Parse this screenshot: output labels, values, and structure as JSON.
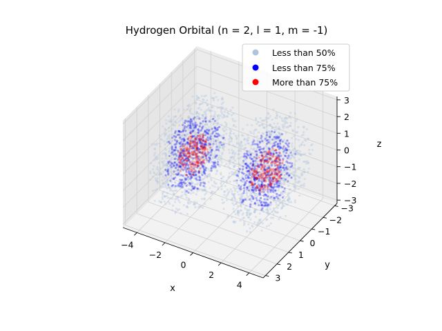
{
  "chart_data": {
    "type": "scatter",
    "projection": "3d",
    "title": "Hydrogen Orbital (n = 2, l = 1, m = -1)",
    "xlabel": "x",
    "ylabel": "y",
    "zlabel": "z",
    "xlim": [
      -5,
      5
    ],
    "ylim": [
      -3.2,
      3.2
    ],
    "zlim": [
      -3.2,
      3.2
    ],
    "x_ticks": [
      "−4",
      "−2",
      "0",
      "2",
      "4"
    ],
    "x_tick_values": [
      -4,
      -2,
      0,
      2,
      4
    ],
    "y_ticks": [
      "−3",
      "−2",
      "−1",
      "0",
      "1",
      "2",
      "3"
    ],
    "y_tick_values": [
      -3,
      -2,
      -1,
      0,
      1,
      2,
      3
    ],
    "z_ticks": [
      "3",
      "2",
      "1",
      "0",
      "−1",
      "−2",
      "−3"
    ],
    "z_tick_values": [
      3,
      2,
      1,
      0,
      -1,
      -2,
      -3
    ],
    "grid": true,
    "legend_position": "top-right",
    "lobes": [
      {
        "x": -2.1,
        "y": 0.6,
        "z": 0.3
      },
      {
        "x": 2.1,
        "y": -0.6,
        "z": -0.3
      }
    ],
    "series": [
      {
        "name": "Less than 50%",
        "color": "#b0c4de",
        "radius": 3.0,
        "points_per_lobe": 900
      },
      {
        "name": "Less than 75%",
        "color": "#0000ff",
        "radius": 2.0,
        "points_per_lobe": 450
      },
      {
        "name": "More than 75%",
        "color": "#ff0000",
        "radius": 1.1,
        "points_per_lobe": 220
      }
    ]
  }
}
